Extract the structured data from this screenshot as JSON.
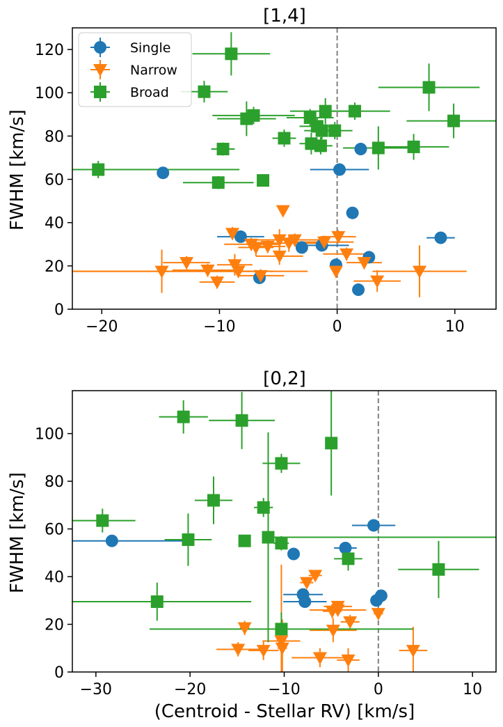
{
  "chart_data": [
    {
      "type": "scatter",
      "title": "[1,4]",
      "xlabel": "",
      "ylabel": "FWHM [km/s]",
      "xlim": [
        -22.5,
        13.5
      ],
      "ylim": [
        0,
        130
      ],
      "xticks": [
        -20,
        -10,
        0,
        10
      ],
      "xtick_labels": [
        "−20",
        "−10",
        "0",
        "10"
      ],
      "yticks": [
        0,
        20,
        40,
        60,
        80,
        100,
        120
      ],
      "ytick_labels": [
        "0",
        "20",
        "40",
        "60",
        "80",
        "100",
        "120"
      ],
      "reference_line": {
        "x": 0,
        "style": "dashed",
        "color": "#808080"
      },
      "legend": {
        "location": "top-left",
        "entries": [
          "Single",
          "Narrow",
          "Broad"
        ]
      },
      "series": [
        {
          "name": "Single",
          "marker": "circle",
          "color": "#1f77b4",
          "points": [
            {
              "x": -14.8,
              "y": 63,
              "xerr": 0,
              "yerr": 0
            },
            {
              "x": 0.2,
              "y": 64.5,
              "xerr": 2.5,
              "yerr": 0
            },
            {
              "x": 2.0,
              "y": 74,
              "xerr": 0,
              "yerr": 0
            },
            {
              "x": 1.3,
              "y": 44.5,
              "xerr": 0,
              "yerr": 0
            },
            {
              "x": -8.2,
              "y": 33.5,
              "xerr": 2,
              "yerr": 0
            },
            {
              "x": -3.0,
              "y": 28.5,
              "xerr": 0,
              "yerr": 0
            },
            {
              "x": -1.3,
              "y": 29.5,
              "xerr": 2.3,
              "yerr": 0
            },
            {
              "x": -0.1,
              "y": 20.5,
              "xerr": 0,
              "yerr": 0
            },
            {
              "x": 2.7,
              "y": 24,
              "xerr": 0,
              "yerr": 0
            },
            {
              "x": 1.8,
              "y": 9,
              "xerr": 0,
              "yerr": 0
            },
            {
              "x": -6.6,
              "y": 14.5,
              "xerr": 0,
              "yerr": 0
            },
            {
              "x": 8.8,
              "y": 33,
              "xerr": 1.2,
              "yerr": 0
            }
          ]
        },
        {
          "name": "Narrow",
          "marker": "triangle-down",
          "color": "#ff7f0e",
          "points": [
            {
              "x": -4.6,
              "y": 45.5,
              "xerr": 0,
              "yerr": 0
            },
            {
              "x": -8.9,
              "y": 35,
              "xerr": 0,
              "yerr": 3
            },
            {
              "x": -7.3,
              "y": 30,
              "xerr": 2.3,
              "yerr": 3
            },
            {
              "x": -6.9,
              "y": 28.5,
              "xerr": 1.5,
              "yerr": 4
            },
            {
              "x": -5.9,
              "y": 29,
              "xerr": 1.5,
              "yerr": 3
            },
            {
              "x": -4.9,
              "y": 32,
              "xerr": 2.5,
              "yerr": 5
            },
            {
              "x": -4.1,
              "y": 30.5,
              "xerr": 2.5,
              "yerr": 4
            },
            {
              "x": -3.6,
              "y": 32,
              "xerr": 2.5,
              "yerr": 3
            },
            {
              "x": -1.1,
              "y": 31,
              "xerr": 2.5,
              "yerr": 3
            },
            {
              "x": 0.1,
              "y": 33.5,
              "xerr": 1.5,
              "yerr": 3
            },
            {
              "x": -4.9,
              "y": 24.5,
              "xerr": 2,
              "yerr": 4
            },
            {
              "x": 0.8,
              "y": 25.5,
              "xerr": 2,
              "yerr": 3
            },
            {
              "x": -14.9,
              "y": 17.5,
              "xerr": 7.5,
              "yerr": 10
            },
            {
              "x": -12.8,
              "y": 21.5,
              "xerr": 2,
              "yerr": 3
            },
            {
              "x": -11.0,
              "y": 18,
              "xerr": 3,
              "yerr": 3
            },
            {
              "x": -10.2,
              "y": 12.5,
              "xerr": 1.5,
              "yerr": 3
            },
            {
              "x": -8.7,
              "y": 20.5,
              "xerr": 1.5,
              "yerr": 5
            },
            {
              "x": -8.4,
              "y": 17.5,
              "xerr": 3,
              "yerr": 3
            },
            {
              "x": -6.5,
              "y": 15.5,
              "xerr": 2,
              "yerr": 3
            },
            {
              "x": -0.1,
              "y": 17.5,
              "xerr": 0,
              "yerr": 3
            },
            {
              "x": 2.3,
              "y": 21.5,
              "xerr": 1.5,
              "yerr": 3
            },
            {
              "x": 3.4,
              "y": 13,
              "xerr": 2,
              "yerr": 5
            },
            {
              "x": 7.0,
              "y": 17.5,
              "xerr": 4,
              "yerr": 12
            },
            {
              "x": -22.5,
              "y": 17.5,
              "xerr": 0,
              "yerr": 0,
              "xspan": [
                -22.5,
                -6.5
              ]
            },
            {
              "x": -4.0,
              "y": 17.5,
              "xerr": 0,
              "yerr": 0,
              "xspan": [
                -6.5,
                -2.5
              ]
            }
          ]
        },
        {
          "name": "Broad",
          "marker": "square",
          "color": "#2ca02c",
          "points": [
            {
              "x": -9.0,
              "y": 118,
              "xerr": 3.3,
              "yerr": 10
            },
            {
              "x": -11.3,
              "y": 100.5,
              "xerr": 2,
              "yerr": 5
            },
            {
              "x": 7.8,
              "y": 102.5,
              "xerr": 4.3,
              "yerr": 11
            },
            {
              "x": -7.7,
              "y": 88,
              "xerr": 2.5,
              "yerr": 8
            },
            {
              "x": -7.1,
              "y": 89.5,
              "xerr": 3.5,
              "yerr": 4
            },
            {
              "x": -2.3,
              "y": 88.5,
              "xerr": 2,
              "yerr": 4
            },
            {
              "x": -1.0,
              "y": 91.5,
              "xerr": 3,
              "yerr": 6
            },
            {
              "x": 1.5,
              "y": 91.5,
              "xerr": 3,
              "yerr": 4
            },
            {
              "x": -1.7,
              "y": 84.5,
              "xerr": 1.5,
              "yerr": 4
            },
            {
              "x": -1.3,
              "y": 82.5,
              "xerr": 1.5,
              "yerr": 4
            },
            {
              "x": -0.2,
              "y": 82.5,
              "xerr": 1.5,
              "yerr": 4
            },
            {
              "x": 9.9,
              "y": 87,
              "xerr": 4,
              "yerr": 8
            },
            {
              "x": -4.5,
              "y": 79,
              "xerr": 1,
              "yerr": 4
            },
            {
              "x": -2.2,
              "y": 76.5,
              "xerr": 1,
              "yerr": 5
            },
            {
              "x": -1.4,
              "y": 75.5,
              "xerr": 1,
              "yerr": 4
            },
            {
              "x": 3.5,
              "y": 74.5,
              "xerr": 3,
              "yerr": 10
            },
            {
              "x": 6.5,
              "y": 75,
              "xerr": 3,
              "yerr": 6
            },
            {
              "x": -9.7,
              "y": 74,
              "xerr": 1,
              "yerr": 3
            },
            {
              "x": -20.3,
              "y": 64.5,
              "xerr": 12,
              "yerr": 4
            },
            {
              "x": -10.1,
              "y": 58.5,
              "xerr": 3,
              "yerr": 3
            },
            {
              "x": -6.3,
              "y": 59.5,
              "xerr": 0,
              "yerr": 0
            }
          ]
        }
      ]
    },
    {
      "type": "scatter",
      "title": "[0,2]",
      "xlabel": "(Centroid - Stellar RV) [km/s]",
      "ylabel": "FWHM [km/s]",
      "xlim": [
        -32.5,
        12.5
      ],
      "ylim": [
        0,
        118
      ],
      "xticks": [
        -30,
        -20,
        -10,
        0,
        10
      ],
      "xtick_labels": [
        "−30",
        "−20",
        "−10",
        "0",
        "10"
      ],
      "yticks": [
        0,
        20,
        40,
        60,
        80,
        100
      ],
      "ytick_labels": [
        "0",
        "20",
        "40",
        "60",
        "80",
        "100"
      ],
      "reference_line": {
        "x": 0,
        "style": "dashed",
        "color": "#808080"
      },
      "series": [
        {
          "name": "Single",
          "marker": "circle",
          "color": "#1f77b4",
          "points": [
            {
              "x": -28.3,
              "y": 55,
              "xerr": 0,
              "yerr": 0,
              "xspan": [
                -32.5,
                -20
              ]
            },
            {
              "x": -0.5,
              "y": 61.5,
              "xerr": 2.3,
              "yerr": 0
            },
            {
              "x": -3.5,
              "y": 52,
              "xerr": 1.2,
              "yerr": 0
            },
            {
              "x": -9.0,
              "y": 49.5,
              "xerr": 0,
              "yerr": 0
            },
            {
              "x": -8.0,
              "y": 32.5,
              "xerr": 2.1,
              "yerr": 0
            },
            {
              "x": -7.8,
              "y": 29.5,
              "xerr": 2.3,
              "yerr": 0
            },
            {
              "x": 0.3,
              "y": 32,
              "xerr": 0,
              "yerr": 0
            },
            {
              "x": -0.2,
              "y": 30,
              "xerr": 0,
              "yerr": 0
            }
          ]
        },
        {
          "name": "Narrow",
          "marker": "triangle-down",
          "color": "#ff7f0e",
          "points": [
            {
              "x": -6.7,
              "y": 40.5,
              "xerr": 0.7,
              "yerr": 2
            },
            {
              "x": -7.6,
              "y": 37.5,
              "xerr": 0.7,
              "yerr": 2
            },
            {
              "x": -4.9,
              "y": 25.5,
              "xerr": 1,
              "yerr": 3
            },
            {
              "x": -4.3,
              "y": 27.5,
              "xerr": 1.5,
              "yerr": 2
            },
            {
              "x": -4.3,
              "y": 26,
              "xerr": 3,
              "yerr": 2
            },
            {
              "x": -3.0,
              "y": 21,
              "xerr": 1,
              "yerr": 3
            },
            {
              "x": 0.0,
              "y": 24.5,
              "xerr": 0.5,
              "yerr": 2
            },
            {
              "x": -14.2,
              "y": 18.5,
              "xerr": 0.5,
              "yerr": 3
            },
            {
              "x": -10.3,
              "y": 13,
              "xerr": 2,
              "yerr": 32
            },
            {
              "x": -4.8,
              "y": 17.5,
              "xerr": 2.5,
              "yerr": 5
            },
            {
              "x": -14.9,
              "y": 9.5,
              "xerr": 2.3,
              "yerr": 3
            },
            {
              "x": -12.2,
              "y": 9,
              "xerr": 1.6,
              "yerr": 4
            },
            {
              "x": -10.2,
              "y": 10,
              "xerr": 0.5,
              "yerr": 12
            },
            {
              "x": -6.2,
              "y": 6,
              "xerr": 3,
              "yerr": 4
            },
            {
              "x": -3.2,
              "y": 5,
              "xerr": 1.2,
              "yerr": 5
            },
            {
              "x": 3.7,
              "y": 9,
              "xerr": 1.5,
              "yerr": 10
            }
          ]
        },
        {
          "name": "Broad",
          "marker": "square",
          "color": "#2ca02c",
          "points": [
            {
              "x": -20.7,
              "y": 107,
              "xerr": 2.6,
              "yerr": 7
            },
            {
              "x": -14.5,
              "y": 105.5,
              "xerr": 3.5,
              "yerr": 12
            },
            {
              "x": -10.3,
              "y": 87.5,
              "xerr": 2,
              "yerr": 4
            },
            {
              "x": -17.5,
              "y": 72,
              "xerr": 2,
              "yerr": 10
            },
            {
              "x": -12.2,
              "y": 69,
              "xerr": 1,
              "yerr": 4
            },
            {
              "x": -29.3,
              "y": 63.5,
              "xerr": 3.5,
              "yerr": 5
            },
            {
              "x": -20.2,
              "y": 55.5,
              "xerr": 2.5,
              "yerr": 11
            },
            {
              "x": -14.2,
              "y": 55,
              "xerr": 0.5,
              "yerr": 0
            },
            {
              "x": -11.7,
              "y": 56.5,
              "xerr": 0,
              "yerr": 44,
              "xspan": [
                -11.7,
                12.5
              ]
            },
            {
              "x": -10.3,
              "y": 54,
              "xerr": 0.8,
              "yerr": 3
            },
            {
              "x": -5.0,
              "y": 96,
              "xerr": 0,
              "yerr": 22
            },
            {
              "x": -3.2,
              "y": 47.5,
              "xerr": 1.5,
              "yerr": 5
            },
            {
              "x": 6.4,
              "y": 43,
              "xerr": 4.3,
              "yerr": 12
            },
            {
              "x": -23.5,
              "y": 29.5,
              "xerr": 10,
              "yerr": 8
            },
            {
              "x": -10.3,
              "y": 18,
              "xerr": 14,
              "yerr": 7
            }
          ]
        }
      ]
    }
  ]
}
